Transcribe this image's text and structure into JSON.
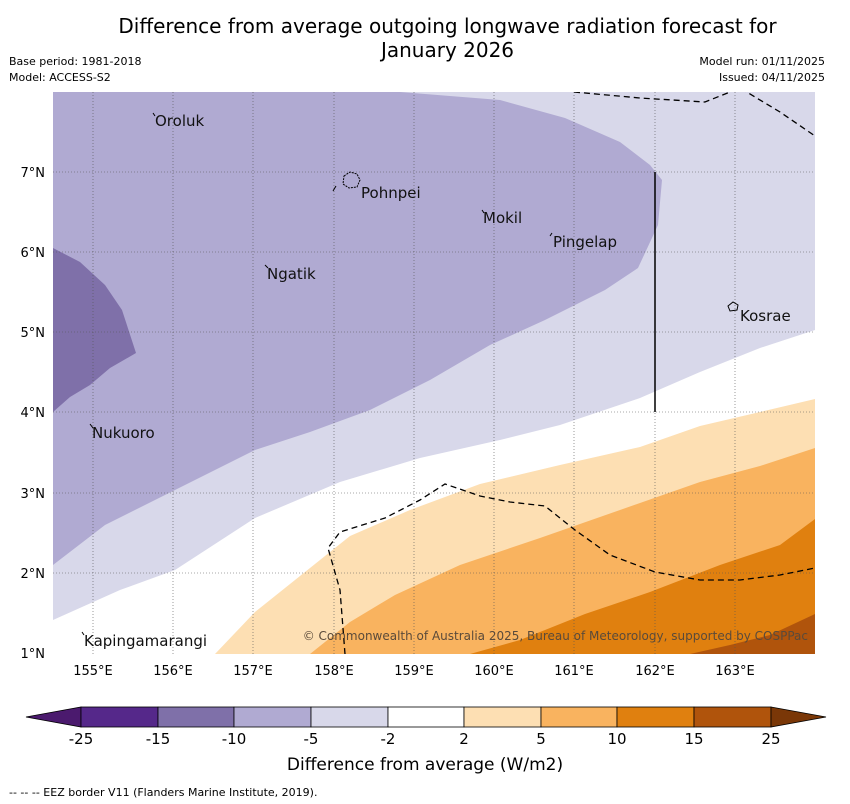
{
  "title": {
    "line1": "Difference from average outgoing longwave radiation forecast for",
    "line2": "January 2026"
  },
  "meta": {
    "base_period": "Base period: 1981-2018",
    "model": "Model: ACCESS-S2",
    "model_run": "Model run: 01/11/2025",
    "issued": "Issued: 04/11/2025"
  },
  "axes": {
    "lon_labels": [
      "155°E",
      "156°E",
      "157°E",
      "158°E",
      "159°E",
      "160°E",
      "161°E",
      "162°E",
      "163°E"
    ],
    "lat_labels": [
      "7°N",
      "6°N",
      "5°N",
      "4°N",
      "3°N",
      "2°N",
      "1°N"
    ]
  },
  "places": [
    "Oroluk",
    "Pohnpei",
    "Mokil",
    "Pingelap",
    "Ngatik",
    "Kosrae",
    "Nukuoro",
    "Kapingamarangi"
  ],
  "copyright": "© Commonwealth of Australia 2025, Bureau of Meteorology, supported by COSPPac",
  "colorbar": {
    "title": "Difference from average (W/m2)",
    "ticks": [
      "-25",
      "-15",
      "-10",
      "-5",
      "-2",
      "2",
      "5",
      "10",
      "15",
      "25"
    ],
    "colors": [
      "#4b1a6e",
      "#55288a",
      "#7f70a9",
      "#b0aad2",
      "#d8d8ea",
      "#ffffff",
      "#fddfb3",
      "#f9b35f",
      "#e0800f",
      "#b0540c",
      "#7a3707"
    ]
  },
  "footnote": "--  --  -- EEZ border V11 (Flanders Marine Institute, 2019)."
}
